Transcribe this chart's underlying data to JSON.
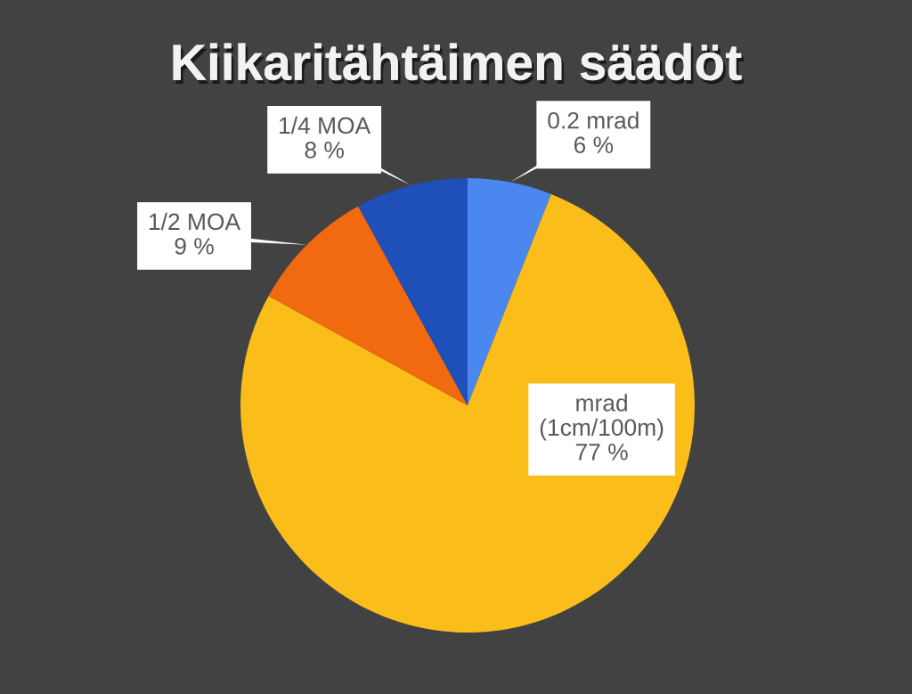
{
  "chart_data": {
    "type": "pie",
    "title": "Kiikaritähtäimen säädöt",
    "categories": [
      "0.2 mrad",
      "mrad (1cm/100m)",
      "1/2 MOA",
      "1/4 MOA"
    ],
    "values": [
      6,
      77,
      9,
      8
    ],
    "colors": [
      "#4a88f0",
      "#fbbd1a",
      "#f26a10",
      "#1f4fb8"
    ],
    "value_labels": [
      "6 %",
      "77 %",
      "9 %",
      "8 %"
    ]
  }
}
